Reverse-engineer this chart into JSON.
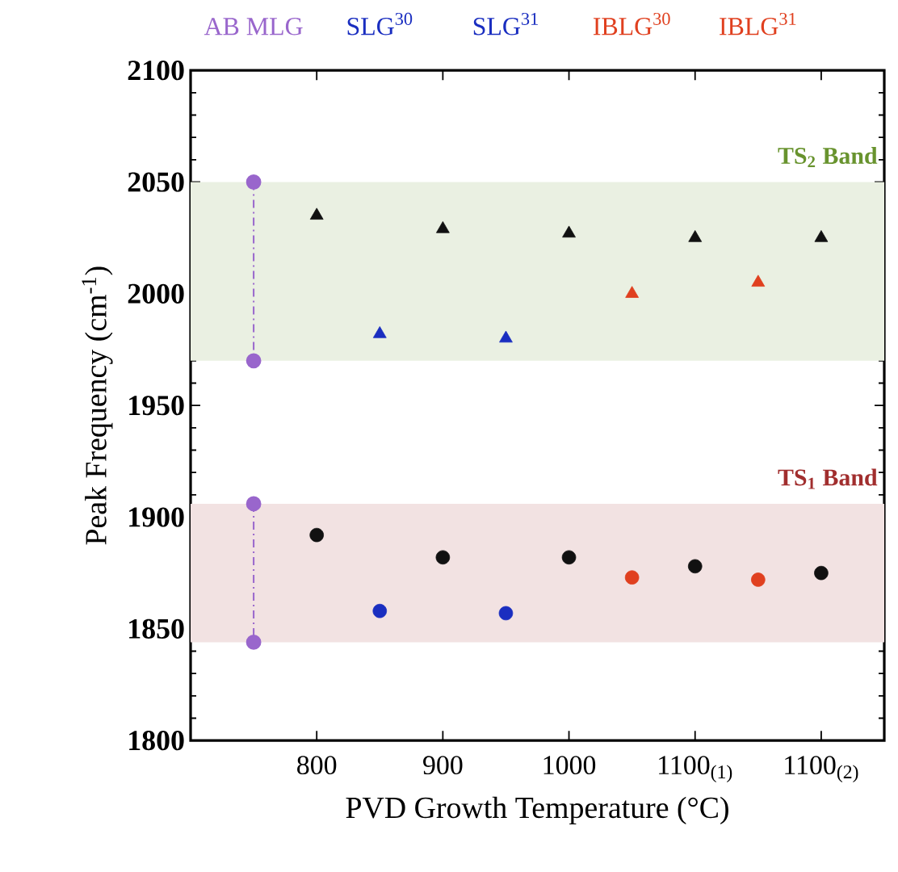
{
  "chart_data": {
    "type": "scatter",
    "xlabel": "PVD Growth Temperature (°C)",
    "ylabel": "Peak Frequency (cm$^{-1}$)",
    "xlim": [
      700,
      1250
    ],
    "ylim": [
      1800,
      2100
    ],
    "xticks": [
      800,
      900,
      1000,
      {
        "value": 1100,
        "label": "1100$_{(1)}$"
      },
      {
        "value": 1200,
        "label": "1100$_{(2)}$"
      }
    ],
    "annotations": [
      "AB MLG",
      "SLG$^{30}$",
      "SLG$^{31}$",
      "IBLG$^{30}$",
      "IBLG$^{31}$"
    ],
    "yticks": [
      1800,
      1850,
      1900,
      1950,
      2000,
      2050,
      2100
    ],
    "bands": [
      {
        "axis": "y",
        "from": 1970,
        "to": 2050,
        "label": "TS$_{2}$ Band",
        "color": "#eaf0e2"
      },
      {
        "axis": "y",
        "from": 1844,
        "to": 1906,
        "label": "TS$_{1}$ Band",
        "color": "#f2e2e2"
      }
    ],
    "series": [
      {
        "type": "line",
        "color": "#9966cc",
        "marker": "circle",
        "line_style": "dashdot",
        "x": [
          750,
          750
        ],
        "values": [
          2050,
          1970
        ]
      },
      {
        "type": "line",
        "color": "#9966cc",
        "marker": "circle",
        "line_style": "dashdot",
        "x": [
          750,
          750
        ],
        "values": [
          1906,
          1844
        ]
      },
      {
        "color": "#111111",
        "marker": "triangle",
        "x": [
          800,
          900,
          1000,
          1100,
          1200
        ],
        "values": [
          2035,
          2029,
          2027,
          2025,
          2025
        ]
      },
      {
        "color": "#111111",
        "marker": "circle",
        "x": [
          800,
          900,
          1000,
          1100,
          1200
        ],
        "values": [
          1892,
          1882,
          1882,
          1878,
          1875
        ]
      },
      {
        "color": "#1a2ec0",
        "marker": "triangle",
        "x": [
          850,
          950
        ],
        "values": [
          1982,
          1980
        ]
      },
      {
        "color": "#1a2ec0",
        "marker": "circle",
        "x": [
          850,
          950
        ],
        "values": [
          1858,
          1857
        ]
      },
      {
        "color": "#e0401f",
        "marker": "triangle",
        "x": [
          1050,
          1150
        ],
        "values": [
          2000,
          2005
        ]
      },
      {
        "color": "#e0401f",
        "marker": "circle",
        "x": [
          1050,
          1150
        ],
        "values": [
          1873,
          1872
        ]
      }
    ]
  }
}
